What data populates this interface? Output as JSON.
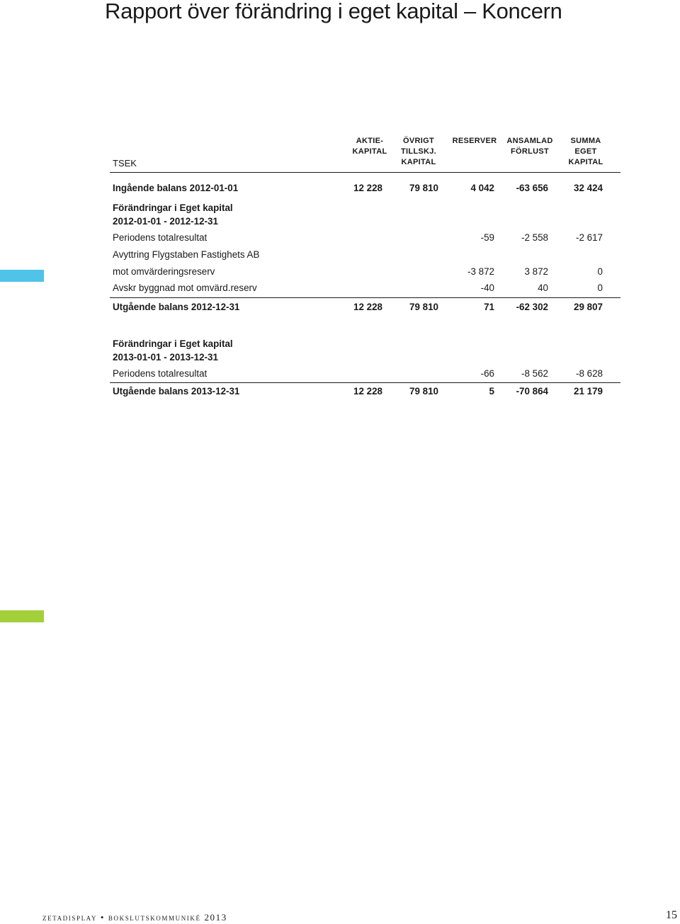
{
  "page": {
    "title": "Rapport över förändring i eget kapital – Koncern",
    "accent_blue": "#4fc3e8",
    "accent_green": "#a3cf3b"
  },
  "table": {
    "unit_label": "TSEK",
    "columns": [
      {
        "lines": [
          "Aktie-",
          "kapital"
        ]
      },
      {
        "lines": [
          "Övrigt",
          "tillskj.",
          "kapital"
        ]
      },
      {
        "lines": [
          "Reserver"
        ]
      },
      {
        "lines": [
          "Ansamlad",
          "förlust"
        ]
      },
      {
        "lines": [
          "Summa",
          "eget",
          "kapital"
        ]
      }
    ],
    "rows": {
      "ib2012": {
        "label": "Ingående balans 2012-01-01",
        "values": [
          "12 228",
          "79 810",
          "4 042",
          "-63 656",
          "32 424"
        ]
      },
      "chg2012_l1": {
        "label": "Förändringar i Eget kapital"
      },
      "chg2012_l2": {
        "label": "2012-01-01 - 2012-12-31"
      },
      "tr2012": {
        "label": "Periodens totalresultat",
        "values": [
          "",
          "",
          "-59",
          "-2 558",
          "-2 617"
        ]
      },
      "avy_l1": {
        "label": "Avyttring Flygstaben Fastighets AB"
      },
      "avy_l2": {
        "label": "mot omvärderingsreserv",
        "values": [
          "",
          "",
          "-3 872",
          "3 872",
          "0"
        ]
      },
      "avskr": {
        "label": "Avskr byggnad mot omvärd.reserv",
        "values": [
          "",
          "",
          "-40",
          "40",
          "0"
        ]
      },
      "ub2012": {
        "label": "Utgående balans 2012-12-31",
        "values": [
          "12 228",
          "79 810",
          "71",
          "-62 302",
          "29 807"
        ]
      },
      "chg2013_l1": {
        "label": "Förändringar i Eget kapital"
      },
      "chg2013_l2": {
        "label": "2013-01-01 - 2013-12-31"
      },
      "tr2013": {
        "label": "Periodens totalresultat",
        "values": [
          "",
          "",
          "-66",
          "-8 562",
          "-8 628"
        ]
      },
      "ub2013": {
        "label": "Utgående balans 2013-12-31",
        "values": [
          "12 228",
          "79 810",
          "5",
          "-70 864",
          "21 179"
        ]
      }
    }
  },
  "footer": {
    "text": "zetadisplay • bokslutskommuniké 2013",
    "page_number": "15"
  }
}
